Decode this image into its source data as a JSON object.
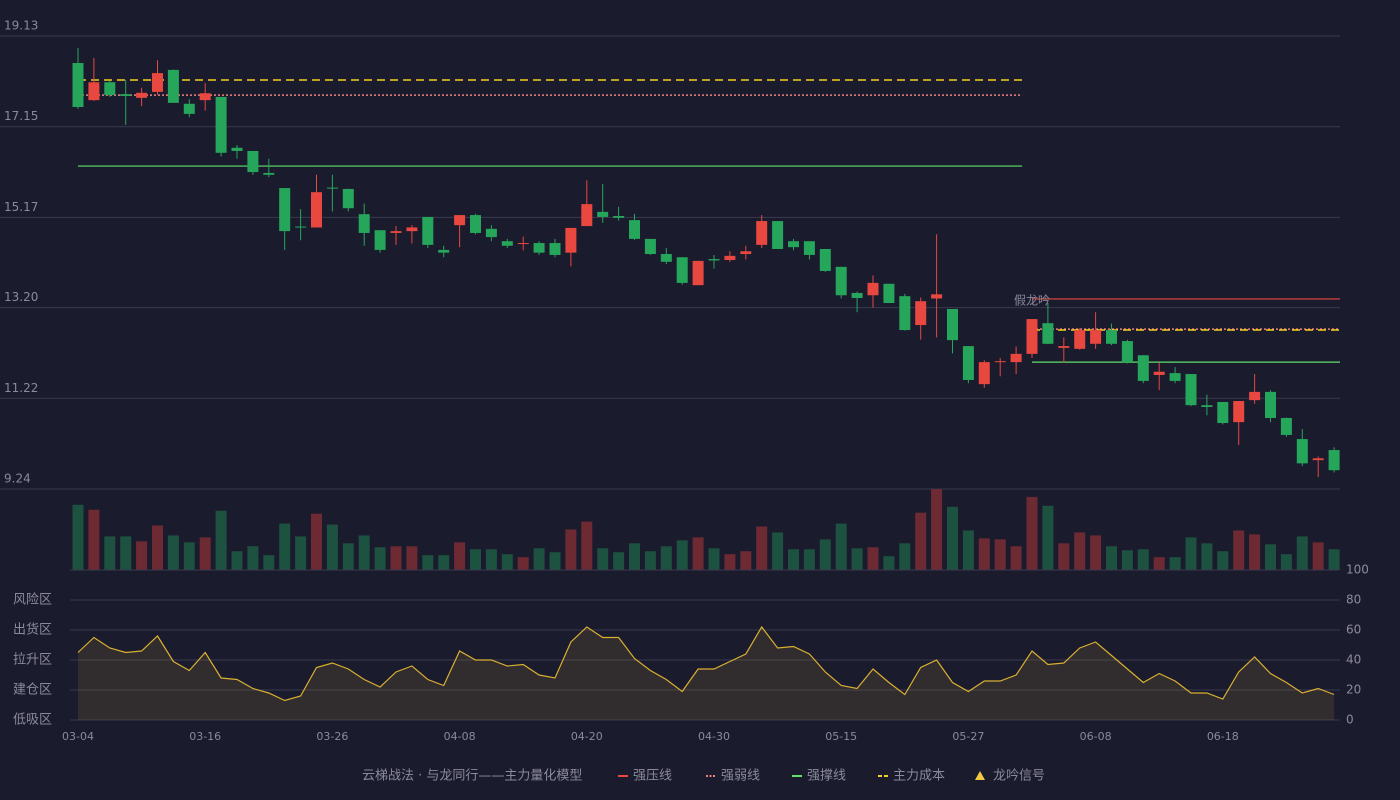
{
  "chart_data": [
    {
      "type": "candlestick",
      "categories": [
        "03-04",
        null,
        null,
        null,
        null,
        null,
        null,
        null,
        "03-16",
        null,
        null,
        null,
        null,
        null,
        null,
        null,
        "03-26",
        null,
        null,
        null,
        null,
        null,
        null,
        null,
        "04-08",
        null,
        null,
        null,
        null,
        null,
        null,
        null,
        "04-20",
        null,
        null,
        null,
        null,
        null,
        null,
        null,
        "04-30",
        null,
        null,
        null,
        null,
        null,
        null,
        null,
        "05-15",
        null,
        null,
        null,
        null,
        null,
        null,
        null,
        "05-27",
        null,
        null,
        null,
        null,
        null,
        null,
        null,
        "06-08",
        null,
        null,
        null,
        null,
        null,
        null,
        null,
        "06-18",
        null,
        null,
        null,
        null,
        null,
        null,
        null
      ],
      "open": [
        18.54,
        17.73,
        18.12,
        17.86,
        17.78,
        17.91,
        18.39,
        17.65,
        17.73,
        17.8,
        16.69,
        16.62,
        16.14,
        15.81,
        14.97,
        14.95,
        15.82,
        15.79,
        15.24,
        14.89,
        14.83,
        14.87,
        15.18,
        14.46,
        15.0,
        15.22,
        14.92,
        14.65,
        14.59,
        14.61,
        14.61,
        14.4,
        14.98,
        15.29,
        15.2,
        15.11,
        14.7,
        14.37,
        14.3,
        13.69,
        14.26,
        14.24,
        14.37,
        14.57,
        15.09,
        14.65,
        14.65,
        14.48,
        14.09,
        13.52,
        13.47,
        13.72,
        13.45,
        12.82,
        13.4,
        13.17,
        12.36,
        11.53,
        12.01,
        12.01,
        12.19,
        12.86,
        12.32,
        12.3,
        12.41,
        12.71,
        12.47,
        12.16,
        11.73,
        11.77,
        11.75,
        11.07,
        11.14,
        10.7,
        11.18,
        11.36,
        10.79,
        10.33,
        9.87,
        10.09
      ],
      "high": [
        18.87,
        18.65,
        18.15,
        18.17,
        18.0,
        18.6,
        18.4,
        17.75,
        18.1,
        17.8,
        16.75,
        16.62,
        16.45,
        15.81,
        15.35,
        16.1,
        16.1,
        15.8,
        15.47,
        14.89,
        14.98,
        15.0,
        15.18,
        14.55,
        15.22,
        15.25,
        15.0,
        14.7,
        14.75,
        14.65,
        14.7,
        14.94,
        15.98,
        15.9,
        15.4,
        15.25,
        14.7,
        14.5,
        14.3,
        14.22,
        14.35,
        14.43,
        14.55,
        15.22,
        15.09,
        14.7,
        14.65,
        14.48,
        14.09,
        13.55,
        13.9,
        13.72,
        13.5,
        13.42,
        14.8,
        13.17,
        12.36,
        12.05,
        12.1,
        12.35,
        12.95,
        13.3,
        12.55,
        12.75,
        13.1,
        12.85,
        12.5,
        12.16,
        12.0,
        11.9,
        11.75,
        11.3,
        11.14,
        11.16,
        11.75,
        11.4,
        10.8,
        10.55,
        9.95,
        10.15
      ],
      "low": [
        17.54,
        17.71,
        17.8,
        17.19,
        17.6,
        17.85,
        17.67,
        17.36,
        17.5,
        16.5,
        16.45,
        16.1,
        16.05,
        14.46,
        14.67,
        14.95,
        15.3,
        15.3,
        14.55,
        14.4,
        14.57,
        14.6,
        14.5,
        14.3,
        14.52,
        14.8,
        14.65,
        14.5,
        14.45,
        14.35,
        14.3,
        14.1,
        14.98,
        15.05,
        15.1,
        14.68,
        14.35,
        14.15,
        13.7,
        13.69,
        14.05,
        14.2,
        14.25,
        14.5,
        14.48,
        14.45,
        14.25,
        13.98,
        13.4,
        13.1,
        13.2,
        13.3,
        12.7,
        12.5,
        12.55,
        12.2,
        11.55,
        11.45,
        11.7,
        11.75,
        12.1,
        12.4,
        12.0,
        12.28,
        12.3,
        12.38,
        11.98,
        11.55,
        11.4,
        11.55,
        11.05,
        10.85,
        10.65,
        10.2,
        11.1,
        10.7,
        10.38,
        9.74,
        9.5,
        9.6
      ],
      "close": [
        17.58,
        18.12,
        17.84,
        17.82,
        17.89,
        18.32,
        17.67,
        17.43,
        17.88,
        16.58,
        16.62,
        16.16,
        16.1,
        14.87,
        14.95,
        15.72,
        15.8,
        15.37,
        14.83,
        14.46,
        14.87,
        14.95,
        14.57,
        14.4,
        15.22,
        14.83,
        14.74,
        14.55,
        14.61,
        14.4,
        14.35,
        14.94,
        15.46,
        15.18,
        15.16,
        14.7,
        14.37,
        14.2,
        13.74,
        14.22,
        14.23,
        14.33,
        14.43,
        15.09,
        14.48,
        14.52,
        14.35,
        14.0,
        13.47,
        13.41,
        13.74,
        13.3,
        12.71,
        13.34,
        13.49,
        12.49,
        11.62,
        12.01,
        12.03,
        12.19,
        12.95,
        12.41,
        12.36,
        12.71,
        12.71,
        12.41,
        12.01,
        11.6,
        11.8,
        11.6,
        11.07,
        11.03,
        10.68,
        11.16,
        11.36,
        10.79,
        10.42,
        9.8,
        9.91,
        9.65
      ],
      "up_color": "#e8483f",
      "down_color": "#26a65b",
      "ylim": [
        9.24,
        19.13
      ],
      "yticks": [
        9.24,
        11.22,
        {
          "value": 13.2,
          "label": "13.20"
        },
        15.17,
        17.15,
        19.13
      ],
      "grid": true,
      "legend_title": "云梯战法 · 与龙同行——主力量化模型",
      "levels": [
        {
          "name": "强压线",
          "color": "#e8483f",
          "style": "solid",
          "segments": [
            {
              "value": 13.39,
              "from": 60,
              "to": 79
            }
          ]
        },
        {
          "name": "强弱线",
          "color": "#f08080",
          "style": "dotted",
          "segments": [
            {
              "value": 17.84,
              "from": 0,
              "to": 59
            },
            {
              "value": 12.73,
              "from": 60,
              "to": 79
            }
          ]
        },
        {
          "name": "强撑线",
          "color": "#5ee06a",
          "style": "solid",
          "segments": [
            {
              "value": 16.29,
              "from": 0,
              "to": 59
            },
            {
              "value": 12.01,
              "from": 60,
              "to": 79
            }
          ]
        },
        {
          "name": "主力成本",
          "color": "#f5d020",
          "style": "dashed",
          "segments": [
            {
              "value": 18.17,
              "from": 0,
              "to": 59
            },
            {
              "value": 12.71,
              "from": 60,
              "to": 79
            }
          ]
        }
      ],
      "signals": {
        "name": "龙吟信号",
        "color": "#f5c842",
        "label_color": "#f07070",
        "points": [
          {
            "index": 60,
            "label": "假龙吟"
          }
        ]
      }
    },
    {
      "type": "bar",
      "values": [
        66,
        61,
        34,
        34,
        29,
        45,
        35,
        28,
        33,
        60,
        19,
        24,
        15,
        47,
        34,
        57,
        46,
        27,
        35,
        23,
        24,
        24,
        15,
        15,
        28,
        21,
        21,
        16,
        13,
        22,
        18,
        41,
        49,
        22,
        18,
        27,
        19,
        24,
        30,
        33,
        22,
        16,
        19,
        44,
        38,
        21,
        21,
        31,
        47,
        22,
        23,
        14,
        27,
        58,
        82,
        64,
        40,
        32,
        31,
        24,
        74,
        65,
        27,
        38,
        35,
        24,
        20,
        21,
        13,
        13,
        33,
        27,
        19,
        40,
        36,
        26,
        16,
        34,
        28,
        21
      ],
      "up_color": "#6e2a33",
      "down_color": "#1d5240"
    },
    {
      "type": "line",
      "values": [
        45,
        55,
        48,
        45,
        46,
        56,
        39,
        33,
        45,
        28,
        27,
        21,
        18,
        13,
        16,
        35,
        38,
        34,
        27,
        22,
        32,
        36,
        27,
        23,
        46,
        40,
        40,
        36,
        37,
        30,
        28,
        52,
        62,
        55,
        55,
        41,
        33,
        27,
        19,
        34,
        34,
        39,
        44,
        62,
        48,
        49,
        44,
        32,
        23,
        21,
        34,
        25,
        17,
        35,
        40,
        25,
        19,
        26,
        26,
        30,
        46,
        37,
        38,
        48,
        52,
        43,
        34,
        25,
        31,
        26,
        18,
        18,
        14,
        32,
        42,
        31,
        25,
        18,
        21,
        17
      ],
      "color": "#d9b030",
      "ylim": [
        0,
        100
      ],
      "yticks": [
        0,
        20,
        40,
        60,
        80,
        100
      ],
      "tick_colors": [
        "#e84060",
        "#f0c030",
        "#4a90e8",
        "#e040e0",
        "#f0a030",
        "#40e040"
      ],
      "zones": [
        {
          "value": 0,
          "label": "低吸区",
          "color": "#e84060"
        },
        {
          "value": 20,
          "label": "建仓区",
          "color": "#f06030"
        },
        {
          "value": 40,
          "label": "拉升区",
          "color": "#4a90e8"
        },
        {
          "value": 60,
          "label": "出货区",
          "color": "#e040e0"
        },
        {
          "value": 80,
          "label": "风险区",
          "color": "#f0a030"
        }
      ]
    }
  ]
}
